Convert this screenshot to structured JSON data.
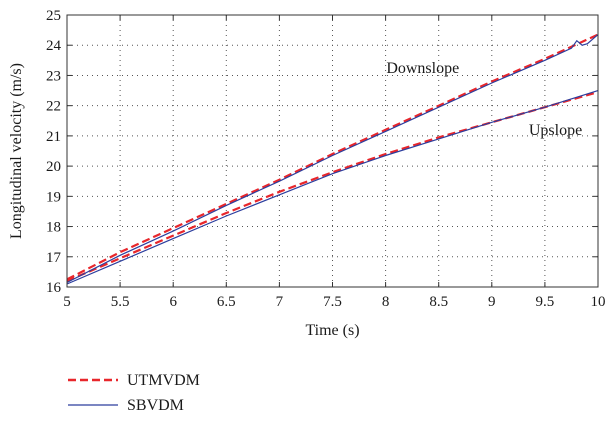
{
  "chart_data": {
    "type": "line",
    "title": "",
    "xlabel": "Time (s)",
    "ylabel": "Longitudinal velocity (m/s)",
    "xlim": [
      5,
      10
    ],
    "ylim": [
      16,
      25
    ],
    "xticks": [
      5,
      5.5,
      6,
      6.5,
      7,
      7.5,
      8,
      8.5,
      9,
      9.5,
      10
    ],
    "xtick_labels": [
      "5",
      "5.5",
      "6",
      "6.5",
      "7",
      "7.5",
      "8",
      "8.5",
      "9",
      "9.5",
      "10"
    ],
    "yticks": [
      16,
      17,
      18,
      19,
      20,
      21,
      22,
      23,
      24,
      25
    ],
    "ytick_labels": [
      "16",
      "17",
      "18",
      "19",
      "20",
      "21",
      "22",
      "23",
      "24",
      "25"
    ],
    "grid": true,
    "legend_position": "below plot, left",
    "annotations": [
      {
        "text": "Downslope",
        "x": 8.35,
        "y": 23.25
      },
      {
        "text": "Upslope",
        "x": 9.6,
        "y": 21.2
      }
    ],
    "series": [
      {
        "name": "UTMVDM",
        "style": "dashed",
        "color": "#e8262b",
        "segments": [
          {
            "label": "Downslope",
            "x": [
              5,
              5.5,
              6,
              6.5,
              7,
              7.5,
              8,
              8.5,
              9,
              9.5,
              10
            ],
            "y": [
              16.25,
              17.15,
              17.95,
              18.75,
              19.55,
              20.4,
              21.2,
              22.0,
              22.8,
              23.55,
              24.35
            ]
          },
          {
            "label": "Upslope",
            "x": [
              5,
              5.5,
              6,
              6.5,
              7,
              7.5,
              8,
              8.5,
              9,
              9.5,
              10
            ],
            "y": [
              16.2,
              16.95,
              17.7,
              18.45,
              19.15,
              19.8,
              20.4,
              20.95,
              21.45,
              21.95,
              22.45
            ]
          }
        ]
      },
      {
        "name": "SBVDM",
        "style": "solid",
        "color": "#2c3e9e",
        "segments": [
          {
            "label": "Downslope",
            "x": [
              5,
              5.5,
              6,
              6.5,
              7,
              7.5,
              8,
              8.5,
              9,
              9.5,
              9.75,
              9.8,
              9.85,
              9.9,
              10
            ],
            "y": [
              16.15,
              17.05,
              17.85,
              18.7,
              19.5,
              20.35,
              21.15,
              21.95,
              22.75,
              23.5,
              23.9,
              24.15,
              24.0,
              24.05,
              24.35
            ]
          },
          {
            "label": "Upslope",
            "x": [
              5,
              5.5,
              6,
              6.5,
              7,
              7.5,
              8,
              8.5,
              9,
              9.5,
              10
            ],
            "y": [
              16.1,
              16.85,
              17.6,
              18.35,
              19.05,
              19.75,
              20.35,
              20.9,
              21.45,
              21.95,
              22.5
            ]
          }
        ]
      }
    ]
  }
}
